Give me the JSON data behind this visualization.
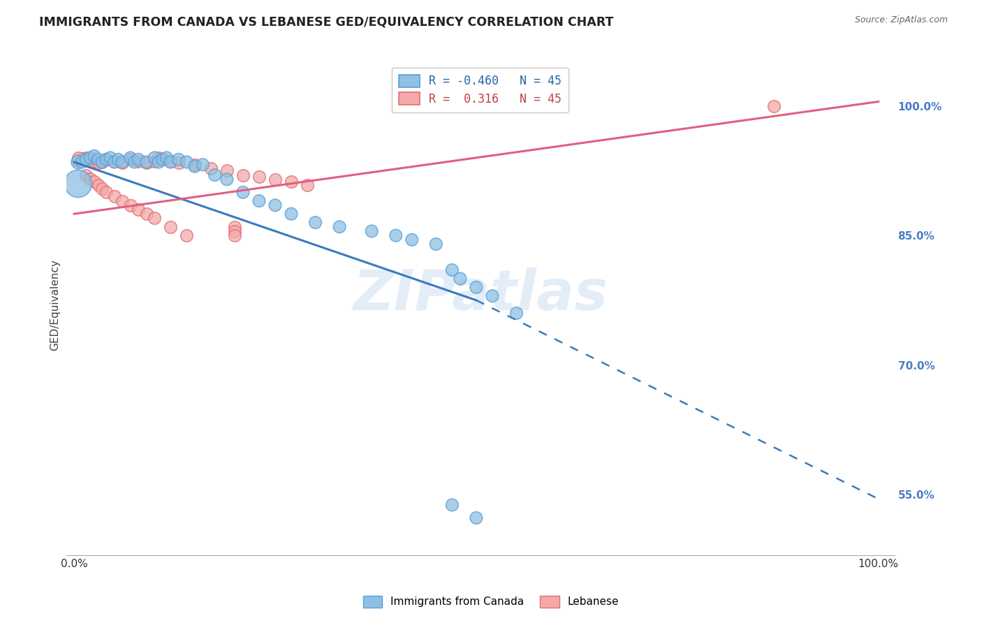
{
  "title": "IMMIGRANTS FROM CANADA VS LEBANESE GED/EQUIVALENCY CORRELATION CHART",
  "source": "Source: ZipAtlas.com",
  "ylabel": "GED/Equivalency",
  "ytick_labels": [
    "55.0%",
    "70.0%",
    "85.0%",
    "100.0%"
  ],
  "ytick_values": [
    0.55,
    0.7,
    0.85,
    1.0
  ],
  "canada_color": "#8ec0e4",
  "lebanese_color": "#f4aaaa",
  "canada_edge_color": "#5a9fd4",
  "lebanese_edge_color": "#e07070",
  "trend_canada_color": "#3a7abf",
  "trend_lebanese_color": "#e06080",
  "background_color": "#ffffff",
  "grid_color": "#cccccc",
  "canada_x": [
    0.005,
    0.01,
    0.015,
    0.02,
    0.025,
    0.03,
    0.035,
    0.04,
    0.045,
    0.05,
    0.055,
    0.06,
    0.07,
    0.075,
    0.08,
    0.09,
    0.1,
    0.105,
    0.11,
    0.115,
    0.12,
    0.13,
    0.14,
    0.15,
    0.16,
    0.175,
    0.19,
    0.21,
    0.23,
    0.25,
    0.27,
    0.3,
    0.33,
    0.37,
    0.4,
    0.42,
    0.45,
    0.47,
    0.48,
    0.5,
    0.52,
    0.55,
    0.47,
    0.5,
    0.005
  ],
  "canada_y": [
    0.935,
    0.935,
    0.938,
    0.94,
    0.942,
    0.938,
    0.935,
    0.938,
    0.94,
    0.935,
    0.938,
    0.935,
    0.94,
    0.935,
    0.938,
    0.935,
    0.94,
    0.935,
    0.938,
    0.94,
    0.935,
    0.938,
    0.935,
    0.93,
    0.932,
    0.92,
    0.915,
    0.9,
    0.89,
    0.885,
    0.875,
    0.865,
    0.86,
    0.855,
    0.85,
    0.845,
    0.84,
    0.81,
    0.8,
    0.79,
    0.78,
    0.76,
    0.538,
    0.523,
    0.91
  ],
  "canada_large": [
    0,
    44
  ],
  "lebanese_x": [
    0.005,
    0.01,
    0.015,
    0.02,
    0.025,
    0.03,
    0.035,
    0.04,
    0.05,
    0.06,
    0.07,
    0.08,
    0.09,
    0.1,
    0.105,
    0.11,
    0.12,
    0.13,
    0.15,
    0.17,
    0.19,
    0.21,
    0.23,
    0.25,
    0.27,
    0.29,
    0.015,
    0.02,
    0.025,
    0.03,
    0.035,
    0.04,
    0.05,
    0.06,
    0.07,
    0.08,
    0.09,
    0.1,
    0.12,
    0.14,
    0.2,
    0.2,
    0.2,
    0.005,
    0.87
  ],
  "lebanese_y": [
    0.937,
    0.939,
    0.94,
    0.938,
    0.936,
    0.934,
    0.935,
    0.938,
    0.936,
    0.934,
    0.938,
    0.936,
    0.934,
    0.936,
    0.94,
    0.938,
    0.936,
    0.934,
    0.932,
    0.928,
    0.925,
    0.92,
    0.918,
    0.915,
    0.912,
    0.908,
    0.92,
    0.916,
    0.912,
    0.908,
    0.904,
    0.9,
    0.895,
    0.89,
    0.885,
    0.88,
    0.875,
    0.87,
    0.86,
    0.85,
    0.86,
    0.855,
    0.85,
    0.94,
    1.0
  ],
  "canada_trend_x0": 0.0,
  "canada_trend_y0": 0.935,
  "canada_trend_x1": 0.5,
  "canada_trend_y1": 0.775,
  "canada_trend_dash_x0": 0.5,
  "canada_trend_dash_y0": 0.775,
  "canada_trend_dash_x1": 1.0,
  "canada_trend_dash_y1": 0.545,
  "lebanese_trend_x0": 0.0,
  "lebanese_trend_y0": 0.875,
  "lebanese_trend_x1": 1.0,
  "lebanese_trend_y1": 1.005,
  "ylim_min": 0.48,
  "ylim_max": 1.06,
  "xlim_min": -0.01,
  "xlim_max": 1.02,
  "watermark_text": "ZIPatlas",
  "watermark_color": "#c8ddf0",
  "legend1_label": "R = -0.460   N = 45",
  "legend2_label": "R =  0.316   N = 45",
  "legend1_r": "R = ",
  "legend1_val": "-0.460",
  "legend1_n": "N = ",
  "legend1_nval": "45",
  "legend2_r": "R = ",
  "legend2_val": " 0.316",
  "legend2_n": "N = ",
  "legend2_nval": "45",
  "bottom_legend1": "Immigrants from Canada",
  "bottom_legend2": "Lebanese"
}
